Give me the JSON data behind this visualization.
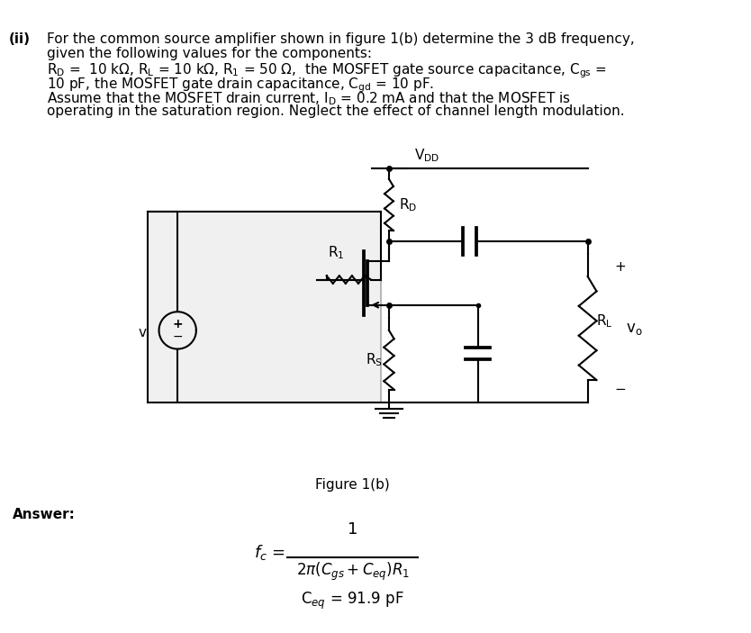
{
  "title_roman": "(ii)",
  "question_text_lines": [
    "For the common source amplifier shown in figure 1(b) determine the 3 dB frequency,",
    "given the following values for the components:",
    "Rᴅ =  10 kΩ, Rₗ = 10 kΩ, R₁ = 50 Ω,  the MOSFET gate source capacitance, Cᴳₛ =",
    "10 pF, the MOSFET gate drain capacitance, Cᴳᵈ = 10 pF.",
    "Assume that the MOSFET drain current, Iᴅ = 0.2 mA and that the MOSFET is",
    "operating in the saturation region. Neglect the effect of channel length modulation."
  ],
  "answer_label": "Answer:",
  "figure_label": "Figure 1(b)",
  "formula_line1": "1",
  "formula_line2": "2π(Cᴳₛ + Cₑⁱ)R₁",
  "formula_ceq": "Cₑⁱ = 91.9 pF",
  "bg_color": "#ffffff",
  "line_color": "#000000",
  "font_size_text": 11,
  "font_size_small": 10
}
